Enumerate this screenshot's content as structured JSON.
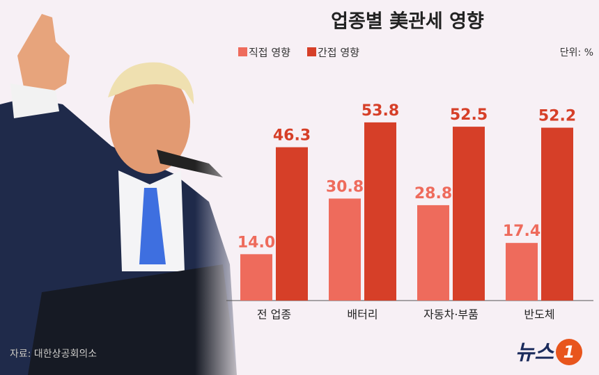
{
  "chart_data": {
    "type": "bar",
    "title": "업종별 美관세 영향",
    "unit": "단위: %",
    "categories": [
      "전 업종",
      "배터리",
      "자동차·부품",
      "반도체"
    ],
    "series": [
      {
        "name": "직접 영향",
        "color": "#ee6b5c",
        "values": [
          14.0,
          30.8,
          28.8,
          17.4
        ],
        "value_labels": [
          "14.0",
          "30.8",
          "28.8",
          "17.4"
        ]
      },
      {
        "name": "간접 영향",
        "color": "#d63f28",
        "values": [
          46.3,
          53.8,
          52.5,
          52.2
        ],
        "value_labels": [
          "46.3",
          "53.8",
          "52.5",
          "52.2"
        ]
      }
    ],
    "source": "자료: 대한상공회의소",
    "logo": {
      "text": "뉴스",
      "mark": "1"
    }
  }
}
